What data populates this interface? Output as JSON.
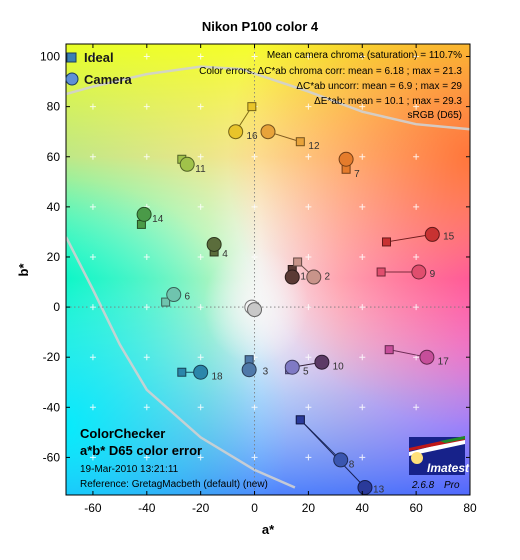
{
  "chart_data": {
    "type": "scatter",
    "title": "Nikon P100 color 4",
    "xlabel": "a*",
    "ylabel": "b*",
    "xlim": [
      -70,
      80
    ],
    "ylim": [
      -75,
      105
    ],
    "xticks": [
      -60,
      -40,
      -20,
      0,
      20,
      40,
      60,
      80
    ],
    "yticks": [
      -60,
      -40,
      -20,
      0,
      20,
      40,
      60,
      80,
      100
    ],
    "grid": true,
    "legend": {
      "position": "top-left",
      "entries": [
        {
          "name": "Ideal",
          "marker": "square",
          "color": "#3a7fb5"
        },
        {
          "name": "Camera",
          "marker": "circle",
          "color": "#5f8fd6"
        }
      ]
    },
    "info_lines": [
      "Mean camera chroma (saturation) = 110.7%",
      "Color errors:  ΔC*ab chroma corr:  mean = 6.18 ;  max = 21.3",
      "ΔC*ab uncorr:  mean = 6.9 ;  max = 29",
      "ΔE*ab:  mean = 10.1 ;  max = 29.3",
      "sRGB (D65)"
    ],
    "bottom_left": {
      "title1": "ColorChecker",
      "title2": "a*b* D65 color error",
      "timestamp": "19-Mar-2010 13:21:11",
      "reference": "Reference: GretagMacbeth (default) (new)"
    },
    "logo": {
      "text": "Imatest",
      "version": "2.6.8",
      "edition": "Pro"
    },
    "patches": [
      {
        "id": "1",
        "ideal": [
          14,
          15
        ],
        "camera": [
          14,
          12
        ],
        "color": "#5a3a35",
        "label_pos": [
          17,
          11
        ]
      },
      {
        "id": "2",
        "ideal": [
          16,
          18
        ],
        "camera": [
          22,
          12
        ],
        "color": "#c8948a",
        "label_pos": [
          26,
          11
        ]
      },
      {
        "id": "3",
        "ideal": [
          -2,
          -21
        ],
        "camera": [
          -2,
          -25
        ],
        "color": "#4f79a9",
        "label_pos": [
          3,
          -27
        ]
      },
      {
        "id": "4",
        "ideal": [
          -15,
          22
        ],
        "camera": [
          -15,
          25
        ],
        "color": "#5b6d3c",
        "label_pos": [
          -12,
          20
        ]
      },
      {
        "id": "5",
        "ideal": [
          13,
          -25
        ],
        "camera": [
          14,
          -24
        ],
        "color": "#7f7ac4",
        "label_pos": [
          18,
          -27
        ]
      },
      {
        "id": "6",
        "ideal": [
          -33,
          2
        ],
        "camera": [
          -30,
          5
        ],
        "color": "#6fc4ae",
        "label_pos": [
          -26,
          3
        ]
      },
      {
        "id": "7",
        "ideal": [
          34,
          55
        ],
        "camera": [
          34,
          59
        ],
        "color": "#e57c2c",
        "label_pos": [
          37,
          52
        ]
      },
      {
        "id": "8",
        "ideal": [
          17,
          -45
        ],
        "camera": [
          32,
          -61
        ],
        "color": "#3a56b0",
        "label_pos": [
          35,
          -64
        ]
      },
      {
        "id": "9",
        "ideal": [
          47,
          14
        ],
        "camera": [
          61,
          14
        ],
        "color": "#e04e6e",
        "label_pos": [
          65,
          12
        ]
      },
      {
        "id": "10",
        "ideal": [
          14,
          -24
        ],
        "camera": [
          25,
          -22
        ],
        "color": "#5c3a66",
        "label_pos": [
          29,
          -25
        ]
      },
      {
        "id": "11",
        "ideal": [
          -27,
          59
        ],
        "camera": [
          -25,
          57
        ],
        "color": "#a0c24a",
        "label_pos": [
          -22,
          54
        ]
      },
      {
        "id": "12",
        "ideal": [
          17,
          66
        ],
        "camera": [
          5,
          70
        ],
        "color": "#e8a33a",
        "label_pos": [
          20,
          63
        ]
      },
      {
        "id": "13",
        "ideal": [
          17,
          -45
        ],
        "camera": [
          41,
          -72
        ],
        "color": "#2a3a9a",
        "label_pos": [
          44,
          -74
        ]
      },
      {
        "id": "14",
        "ideal": [
          -42,
          33
        ],
        "camera": [
          -41,
          37
        ],
        "color": "#4a9a48",
        "label_pos": [
          -38,
          34
        ]
      },
      {
        "id": "15",
        "ideal": [
          49,
          26
        ],
        "camera": [
          66,
          29
        ],
        "color": "#c83232",
        "label_pos": [
          70,
          27
        ]
      },
      {
        "id": "16",
        "ideal": [
          -1,
          80
        ],
        "camera": [
          -7,
          70
        ],
        "color": "#e8c42a",
        "label_pos": [
          -3,
          67
        ]
      },
      {
        "id": "17",
        "ideal": [
          50,
          -17
        ],
        "camera": [
          64,
          -20
        ],
        "color": "#c64e9a",
        "label_pos": [
          68,
          -23
        ]
      },
      {
        "id": "18",
        "ideal": [
          -27,
          -26
        ],
        "camera": [
          -20,
          -26
        ],
        "color": "#2b86aa",
        "label_pos": [
          -16,
          -29
        ]
      },
      {
        "id": "19",
        "ideal": [
          0,
          0
        ],
        "camera": [
          -1,
          0
        ],
        "color": "#f2f2f2",
        "label_pos": [
          0,
          0
        ]
      },
      {
        "id": "20",
        "ideal": [
          0,
          0
        ],
        "camera": [
          0,
          -1
        ],
        "color": "#c8c8c8",
        "label_pos": [
          0,
          0
        ]
      }
    ],
    "gamut_boundaries": {
      "upper": [
        [
          -70,
          85
        ],
        [
          -60,
          88
        ],
        [
          -40,
          93
        ],
        [
          -20,
          96
        ],
        [
          -5,
          95
        ],
        [
          20,
          86
        ],
        [
          40,
          78
        ],
        [
          60,
          73
        ],
        [
          80,
          71
        ]
      ],
      "lower": [
        [
          -70,
          28
        ],
        [
          -60,
          7
        ],
        [
          -50,
          -15
        ],
        [
          -40,
          -33
        ],
        [
          -20,
          -52
        ],
        [
          0,
          -65
        ],
        [
          15,
          -72
        ]
      ]
    }
  }
}
